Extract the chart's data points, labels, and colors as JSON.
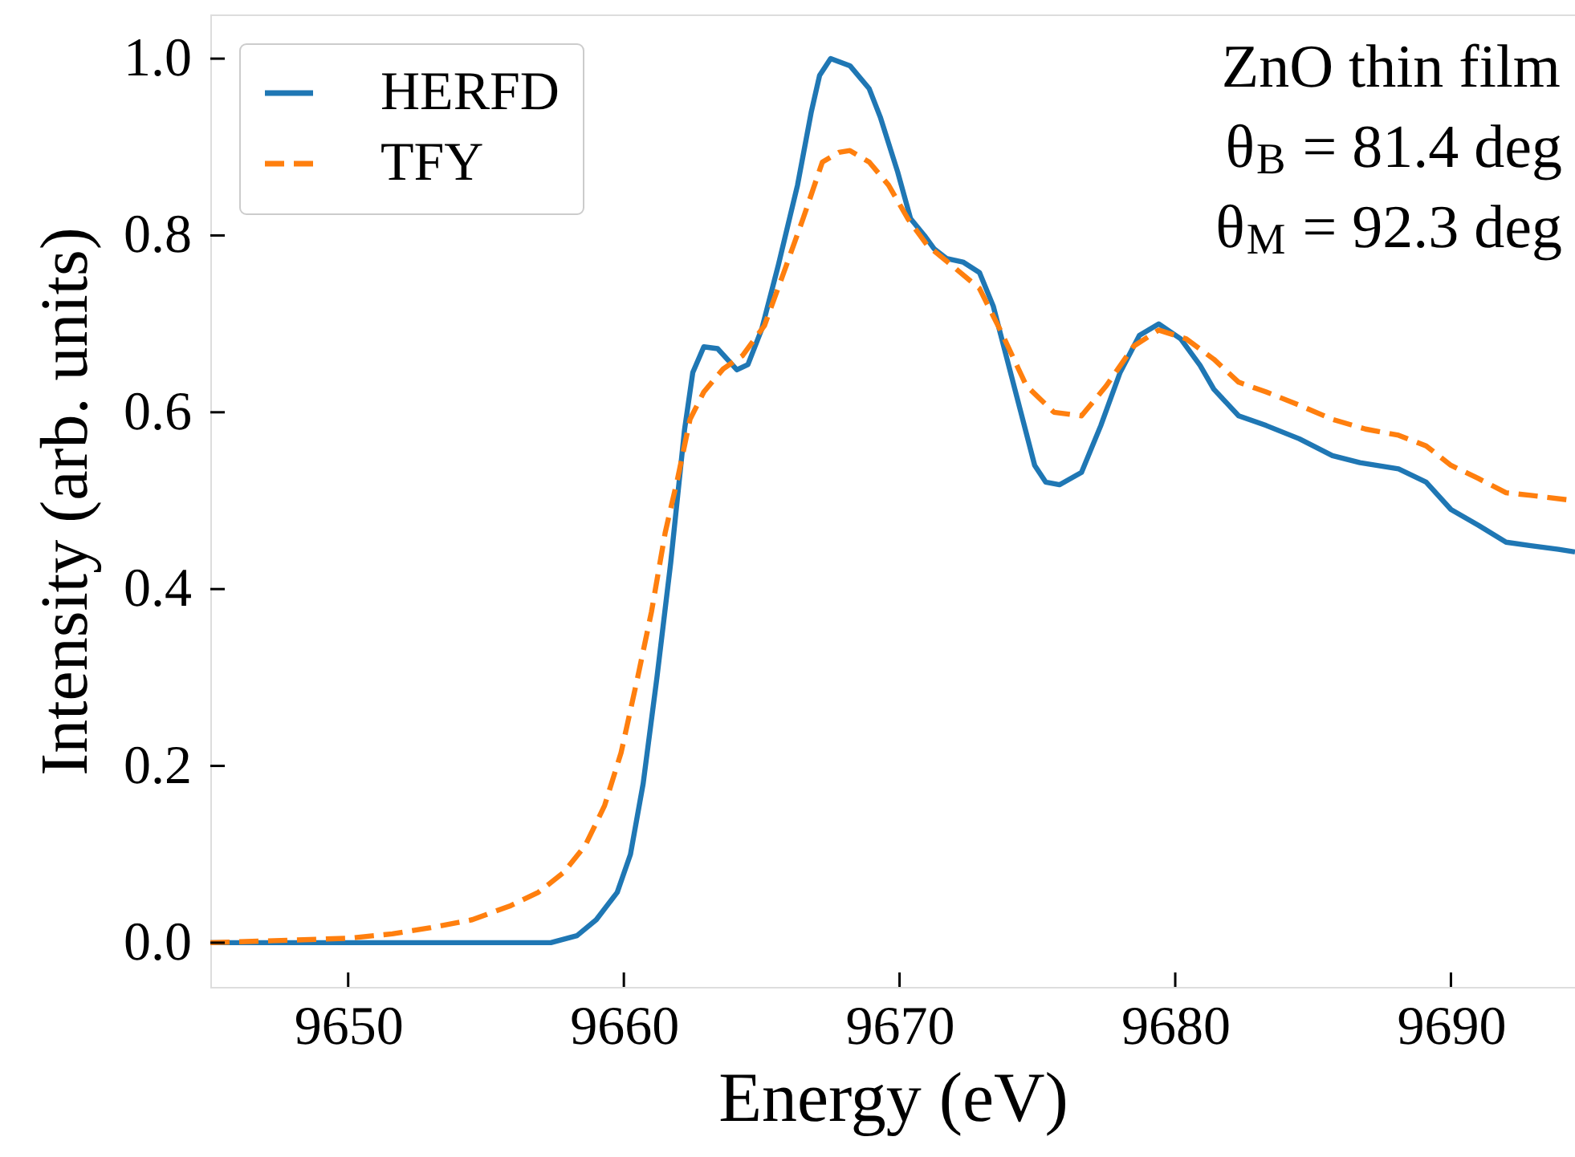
{
  "chart_data": {
    "type": "line",
    "xlabel": "Energy (eV)",
    "ylabel": "Intensity (arb. units)",
    "xlim": [
      9645,
      9694.5
    ],
    "ylim": [
      -0.05,
      1.05
    ],
    "xticks": [
      9650,
      9660,
      9670,
      9680,
      9690
    ],
    "yticks": [
      {
        "value": 0,
        "label": "0.0"
      },
      0.2,
      0.4,
      0.6,
      0.8,
      {
        "value": 1,
        "label": "1.0"
      }
    ],
    "grid": false,
    "legend": "top left",
    "marker": "none",
    "annotations": [
      "ZnO thin film",
      "θ$_{B}$ = 81.4 deg",
      "θ$_{M}$ = 92.3 deg"
    ],
    "series": [
      {
        "name": "HERFD",
        "color": "#1f77b4",
        "line_style": "solid",
        "x": [
          9645.0,
          9657.35,
          9658.3,
          9659.0,
          9659.76,
          9660.24,
          9660.7,
          9661.2,
          9661.7,
          9662.2,
          9662.5,
          9662.9,
          9663.4,
          9664.1,
          9664.5,
          9665.0,
          9665.6,
          9666.3,
          9666.8,
          9667.1,
          9667.5,
          9668.2,
          9668.9,
          9669.3,
          9669.93,
          9670.4,
          9670.9,
          9671.25,
          9671.7,
          9672.3,
          9672.9,
          9673.4,
          9673.9,
          9674.4,
          9674.9,
          9675.3,
          9675.8,
          9676.6,
          9677.3,
          9678.0,
          9678.7,
          9679.4,
          9680.2,
          9680.9,
          9681.4,
          9682.3,
          9683.3,
          9684.5,
          9685.7,
          9686.7,
          9688.1,
          9689.1,
          9690.0,
          9691.0,
          9692.0,
          9692.9,
          9693.9,
          9694.5
        ],
        "values": [
          0,
          0,
          0.008,
          0.026,
          0.057,
          0.1,
          0.18,
          0.3,
          0.43,
          0.58,
          0.645,
          0.674,
          0.672,
          0.648,
          0.654,
          0.694,
          0.766,
          0.857,
          0.94,
          0.981,
          1.0,
          0.992,
          0.966,
          0.934,
          0.872,
          0.819,
          0.8,
          0.785,
          0.774,
          0.77,
          0.758,
          0.72,
          0.66,
          0.6,
          0.54,
          0.521,
          0.518,
          0.532,
          0.585,
          0.645,
          0.687,
          0.7,
          0.683,
          0.653,
          0.626,
          0.596,
          0.585,
          0.57,
          0.551,
          0.543,
          0.536,
          0.521,
          0.49,
          0.472,
          0.453,
          0.449,
          0.445,
          0.442
        ]
      },
      {
        "name": "TFY",
        "color": "#ff7f0e",
        "line_style": "dashed",
        "x": [
          9645.0,
          9650.0,
          9651.6,
          9653.0,
          9654.5,
          9655.9,
          9656.9,
          9657.8,
          9658.6,
          9659.3,
          9659.9,
          9660.5,
          9661.0,
          9661.5,
          9661.95,
          9662.4,
          9662.9,
          9663.6,
          9664.3,
          9665.1,
          9665.8,
          9666.5,
          9667.2,
          9667.8,
          9668.2,
          9668.9,
          9669.6,
          9670.3,
          9671.0,
          9671.9,
          9672.9,
          9673.7,
          9674.6,
          9675.6,
          9676.6,
          9677.5,
          9678.5,
          9679.4,
          9680.4,
          9681.4,
          9682.3,
          9683.3,
          9684.5,
          9685.7,
          9686.9,
          9688.1,
          9689.1,
          9690.0,
          9691.0,
          9692.0,
          9692.9,
          9694.5
        ],
        "values": [
          0,
          0.005,
          0.01,
          0.017,
          0.026,
          0.042,
          0.057,
          0.079,
          0.11,
          0.155,
          0.215,
          0.3,
          0.374,
          0.464,
          0.525,
          0.592,
          0.623,
          0.649,
          0.664,
          0.698,
          0.758,
          0.819,
          0.883,
          0.894,
          0.896,
          0.883,
          0.857,
          0.819,
          0.789,
          0.766,
          0.74,
          0.69,
          0.63,
          0.6,
          0.596,
          0.63,
          0.675,
          0.693,
          0.683,
          0.66,
          0.634,
          0.623,
          0.608,
          0.592,
          0.581,
          0.574,
          0.562,
          0.54,
          0.525,
          0.509,
          0.506,
          0.5
        ]
      }
    ]
  }
}
